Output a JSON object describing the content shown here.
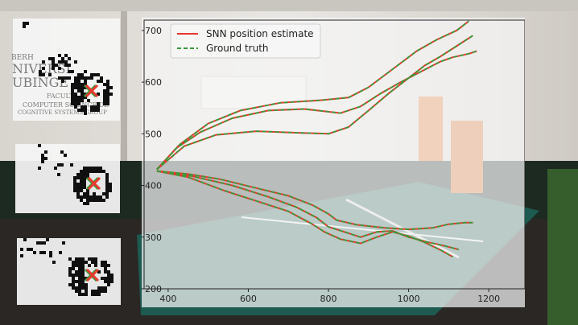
{
  "chart_data": {
    "type": "line",
    "title": "",
    "xlabel": "",
    "ylabel": "",
    "xlim": [
      340,
      1290
    ],
    "ylim": [
      200,
      720
    ],
    "xticks": [
      400,
      600,
      800,
      1000,
      1200
    ],
    "yticks": [
      200,
      300,
      400,
      500,
      600,
      700
    ],
    "grid": false,
    "legend_position": "top-left",
    "legend": [
      {
        "label": "SNN position estimate",
        "color": "#e8382e",
        "style": "solid"
      },
      {
        "label": "Ground truth",
        "color": "#3a9a3a",
        "style": "dashed"
      }
    ],
    "series": [
      {
        "name": "SNN position estimate",
        "color": "#e8382e",
        "style": "solid",
        "trajectories": [
          [
            [
              372,
              431
            ],
            [
              420,
              472
            ],
            [
              480,
              503
            ],
            [
              560,
              530
            ],
            [
              650,
              545
            ],
            [
              740,
              548
            ],
            [
              830,
              540
            ],
            [
              880,
              553
            ],
            [
              930,
              578
            ],
            [
              980,
              600
            ],
            [
              1030,
              620
            ],
            [
              1080,
              640
            ],
            [
              1110,
              648
            ],
            [
              1150,
              655
            ],
            [
              1170,
              660
            ]
          ],
          [
            [
              372,
              431
            ],
            [
              430,
              480
            ],
            [
              500,
              520
            ],
            [
              580,
              545
            ],
            [
              680,
              560
            ],
            [
              780,
              565
            ],
            [
              850,
              570
            ],
            [
              900,
              590
            ],
            [
              960,
              625
            ],
            [
              1020,
              660
            ],
            [
              1070,
              682
            ],
            [
              1120,
              700
            ],
            [
              1150,
              718
            ]
          ],
          [
            [
              372,
              431
            ],
            [
              440,
              476
            ],
            [
              520,
              498
            ],
            [
              620,
              505
            ],
            [
              720,
              502
            ],
            [
              800,
              500
            ],
            [
              850,
              513
            ],
            [
              900,
              545
            ],
            [
              950,
              578
            ],
            [
              1000,
              608
            ],
            [
              1040,
              632
            ],
            [
              1080,
              650
            ],
            [
              1120,
              670
            ],
            [
              1160,
              690
            ]
          ],
          [
            [
              372,
              428
            ],
            [
              450,
              422
            ],
            [
              530,
              412
            ],
            [
              620,
              395
            ],
            [
              700,
              380
            ],
            [
              760,
              362
            ],
            [
              800,
              345
            ],
            [
              820,
              333
            ],
            [
              870,
              324
            ],
            [
              940,
              318
            ],
            [
              1000,
              315
            ],
            [
              1060,
              318
            ],
            [
              1100,
              325
            ],
            [
              1140,
              328
            ],
            [
              1160,
              328
            ]
          ],
          [
            [
              372,
              428
            ],
            [
              460,
              418
            ],
            [
              560,
              400
            ],
            [
              650,
              378
            ],
            [
              720,
              358
            ],
            [
              770,
              338
            ],
            [
              800,
              320
            ],
            [
              840,
              310
            ],
            [
              880,
              300
            ],
            [
              920,
              310
            ],
            [
              960,
              312
            ],
            [
              1000,
              300
            ],
            [
              1050,
              290
            ],
            [
              1090,
              283
            ],
            [
              1125,
              276
            ]
          ],
          [
            [
              372,
              428
            ],
            [
              450,
              416
            ],
            [
              540,
              390
            ],
            [
              620,
              370
            ],
            [
              700,
              350
            ],
            [
              760,
              325
            ],
            [
              790,
              310
            ],
            [
              830,
              296
            ],
            [
              880,
              288
            ],
            [
              920,
              300
            ],
            [
              960,
              310
            ],
            [
              1000,
              302
            ],
            [
              1040,
              290
            ],
            [
              1080,
              275
            ],
            [
              1110,
              262
            ]
          ]
        ]
      },
      {
        "name": "Ground truth",
        "color": "#3a9a3a",
        "style": "dashed",
        "trajectories": [
          [
            [
              372,
              431
            ],
            [
              420,
              472
            ],
            [
              480,
              503
            ],
            [
              560,
              530
            ],
            [
              650,
              545
            ],
            [
              740,
              548
            ],
            [
              830,
              540
            ],
            [
              880,
              553
            ],
            [
              930,
              578
            ],
            [
              980,
              600
            ],
            [
              1030,
              620
            ],
            [
              1080,
              640
            ],
            [
              1110,
              648
            ],
            [
              1150,
              655
            ],
            [
              1170,
              660
            ]
          ],
          [
            [
              372,
              431
            ],
            [
              430,
              480
            ],
            [
              500,
              520
            ],
            [
              580,
              545
            ],
            [
              680,
              560
            ],
            [
              780,
              565
            ],
            [
              850,
              570
            ],
            [
              900,
              590
            ],
            [
              960,
              625
            ],
            [
              1020,
              660
            ],
            [
              1070,
              682
            ],
            [
              1120,
              700
            ],
            [
              1150,
              718
            ]
          ],
          [
            [
              372,
              431
            ],
            [
              440,
              476
            ],
            [
              520,
              498
            ],
            [
              620,
              505
            ],
            [
              720,
              502
            ],
            [
              800,
              500
            ],
            [
              850,
              513
            ],
            [
              900,
              545
            ],
            [
              950,
              578
            ],
            [
              1000,
              608
            ],
            [
              1040,
              632
            ],
            [
              1080,
              650
            ],
            [
              1120,
              670
            ],
            [
              1160,
              690
            ]
          ],
          [
            [
              372,
              428
            ],
            [
              450,
              422
            ],
            [
              530,
              412
            ],
            [
              620,
              395
            ],
            [
              700,
              380
            ],
            [
              760,
              362
            ],
            [
              800,
              345
            ],
            [
              820,
              333
            ],
            [
              870,
              324
            ],
            [
              940,
              318
            ],
            [
              1000,
              315
            ],
            [
              1060,
              318
            ],
            [
              1100,
              325
            ],
            [
              1140,
              328
            ],
            [
              1160,
              328
            ]
          ],
          [
            [
              372,
              428
            ],
            [
              460,
              418
            ],
            [
              560,
              400
            ],
            [
              650,
              378
            ],
            [
              720,
              358
            ],
            [
              770,
              338
            ],
            [
              800,
              320
            ],
            [
              840,
              310
            ],
            [
              880,
              300
            ],
            [
              920,
              310
            ],
            [
              960,
              312
            ],
            [
              1000,
              300
            ],
            [
              1050,
              290
            ],
            [
              1090,
              283
            ],
            [
              1125,
              276
            ]
          ],
          [
            [
              372,
              428
            ],
            [
              450,
              416
            ],
            [
              540,
              390
            ],
            [
              620,
              370
            ],
            [
              700,
              350
            ],
            [
              760,
              325
            ],
            [
              790,
              310
            ],
            [
              830,
              296
            ],
            [
              880,
              288
            ],
            [
              920,
              300
            ],
            [
              960,
              310
            ],
            [
              1000,
              302
            ],
            [
              1040,
              290
            ],
            [
              1080,
              275
            ],
            [
              1110,
              262
            ]
          ]
        ]
      }
    ]
  },
  "insets": {
    "colors": {
      "pixel": "#101010",
      "estimate": "#e8382e",
      "ground_truth": "#3a9a3a"
    },
    "marker": "x",
    "background_text": [
      {
        "text": "BERH",
        "inset": 0
      },
      {
        "text": "NIVERSI",
        "inset": 0
      },
      {
        "text": "UBINGE",
        "inset": 0
      },
      {
        "text": "FACULT",
        "inset": 0
      },
      {
        "text": "COMPUTER SCIENCE DE",
        "inset": 0
      },
      {
        "text": "COGNITIVE SYSTEMS GROUP",
        "inset": 0
      }
    ]
  }
}
